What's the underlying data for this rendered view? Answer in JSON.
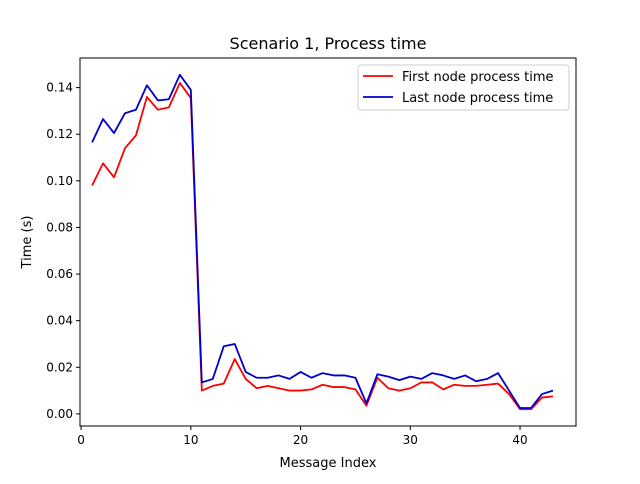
{
  "chart_data": {
    "type": "line",
    "title": "Scenario 1, Process time",
    "xlabel": "Message Index",
    "ylabel": "Time (s)",
    "xlim": [
      -0.1,
      45.1
    ],
    "ylim": [
      -0.0052,
      0.1527
    ],
    "xticks": [
      0,
      10,
      20,
      30,
      40
    ],
    "xtick_labels": [
      "0",
      "10",
      "20",
      "30",
      "40"
    ],
    "yticks": [
      0.0,
      0.02,
      0.04,
      0.06,
      0.08,
      0.1,
      0.12,
      0.14
    ],
    "ytick_labels": [
      "0.00",
      "0.02",
      "0.04",
      "0.06",
      "0.08",
      "0.10",
      "0.12",
      "0.14"
    ],
    "grid": false,
    "legend_position": "upper right",
    "x": [
      1,
      2,
      3,
      4,
      5,
      6,
      7,
      8,
      9,
      10,
      11,
      12,
      13,
      14,
      15,
      16,
      17,
      18,
      19,
      20,
      21,
      22,
      23,
      24,
      25,
      26,
      27,
      28,
      29,
      30,
      31,
      32,
      33,
      34,
      35,
      36,
      37,
      38,
      39,
      40,
      41,
      42,
      43
    ],
    "series": [
      {
        "name": "First node process time",
        "color": "#ff0000",
        "values": [
          0.098,
          0.1075,
          0.1015,
          0.114,
          0.1195,
          0.136,
          0.1305,
          0.1315,
          0.142,
          0.1355,
          0.01,
          0.012,
          0.013,
          0.0235,
          0.015,
          0.011,
          0.012,
          0.011,
          0.01,
          0.01,
          0.0105,
          0.0125,
          0.0115,
          0.0115,
          0.0105,
          0.0035,
          0.0155,
          0.011,
          0.01,
          0.011,
          0.0135,
          0.0135,
          0.0105,
          0.0125,
          0.012,
          0.012,
          0.0125,
          0.013,
          0.0085,
          0.002,
          0.002,
          0.007,
          0.0075
        ]
      },
      {
        "name": "Last node process time",
        "color": "#0000cc",
        "values": [
          0.1165,
          0.1265,
          0.1205,
          0.129,
          0.1305,
          0.141,
          0.1345,
          0.135,
          0.1455,
          0.139,
          0.0135,
          0.015,
          0.029,
          0.03,
          0.018,
          0.0155,
          0.0155,
          0.0165,
          0.015,
          0.018,
          0.0155,
          0.0175,
          0.0165,
          0.0165,
          0.0155,
          0.0045,
          0.017,
          0.016,
          0.0145,
          0.016,
          0.015,
          0.0175,
          0.0165,
          0.015,
          0.0165,
          0.014,
          0.015,
          0.0175,
          0.01,
          0.0025,
          0.0025,
          0.0085,
          0.01
        ]
      }
    ]
  }
}
